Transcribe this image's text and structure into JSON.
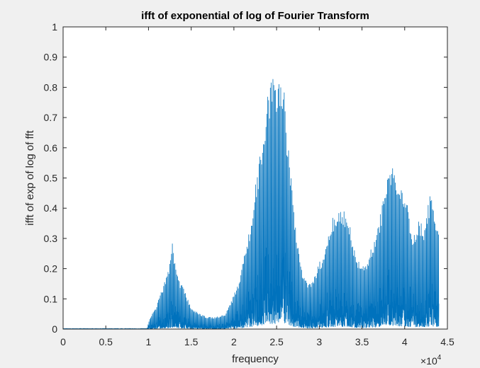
{
  "chart_data": {
    "type": "line",
    "title": "ifft of exponential of log of Fourier Transform",
    "xlabel": "frequency",
    "ylabel": "ifft of exp of log of fft",
    "x_multiplier": "×10",
    "x_multiplier_exponent": "4",
    "xlim": [
      0,
      45000
    ],
    "ylim": [
      0,
      1
    ],
    "x_ticks": [
      {
        "value": 0,
        "label": "0"
      },
      {
        "value": 5000,
        "label": "0.5"
      },
      {
        "value": 10000,
        "label": "1"
      },
      {
        "value": 15000,
        "label": "1.5"
      },
      {
        "value": 20000,
        "label": "2"
      },
      {
        "value": 25000,
        "label": "2.5"
      },
      {
        "value": 30000,
        "label": "3"
      },
      {
        "value": 35000,
        "label": "3.5"
      },
      {
        "value": 40000,
        "label": "4"
      },
      {
        "value": 45000,
        "label": "4.5"
      }
    ],
    "y_ticks": [
      {
        "value": 0,
        "label": "0"
      },
      {
        "value": 0.1,
        "label": "0.1"
      },
      {
        "value": 0.2,
        "label": "0.2"
      },
      {
        "value": 0.3,
        "label": "0.3"
      },
      {
        "value": 0.4,
        "label": "0.4"
      },
      {
        "value": 0.5,
        "label": "0.5"
      },
      {
        "value": 0.6,
        "label": "0.6"
      },
      {
        "value": 0.7,
        "label": "0.7"
      },
      {
        "value": 0.8,
        "label": "0.8"
      },
      {
        "value": 0.9,
        "label": "0.9"
      },
      {
        "value": 1,
        "label": "1"
      }
    ],
    "grid": false,
    "line_color": "#0072BD",
    "series": [
      {
        "x": [
          0,
          9800,
          10200,
          10800,
          11200,
          11800,
          12200,
          12600,
          12800,
          13000,
          13200,
          13600,
          14200,
          15000,
          16000,
          17000,
          18000,
          19000,
          19800,
          20200,
          20800,
          21400,
          22000,
          22600,
          23000,
          23400,
          23800,
          24200,
          24600,
          24800,
          25000,
          25200,
          25400,
          25600,
          25800,
          26000,
          26400,
          26800,
          27200,
          27600,
          28000,
          28600,
          29400,
          30000,
          30600,
          31200,
          31600,
          32000,
          32400,
          32800,
          33200,
          33600,
          34000,
          34400,
          34800,
          35400,
          36000,
          36600,
          37000,
          37400,
          37800,
          38200,
          38600,
          38800,
          39000,
          39400,
          39800,
          40200,
          40600,
          41000,
          41600,
          42200,
          42600,
          43000,
          43400,
          43800,
          44000
        ],
        "y": [
          0,
          0,
          0.04,
          0.07,
          0.1,
          0.15,
          0.18,
          0.24,
          0.29,
          0.24,
          0.22,
          0.16,
          0.13,
          0.07,
          0.05,
          0.04,
          0.04,
          0.05,
          0.1,
          0.13,
          0.18,
          0.28,
          0.36,
          0.5,
          0.56,
          0.67,
          0.74,
          0.82,
          0.89,
          0.84,
          0.8,
          0.94,
          0.86,
          0.84,
          0.82,
          0.74,
          0.6,
          0.47,
          0.35,
          0.28,
          0.2,
          0.15,
          0.17,
          0.22,
          0.26,
          0.34,
          0.37,
          0.38,
          0.4,
          0.4,
          0.38,
          0.34,
          0.28,
          0.24,
          0.22,
          0.22,
          0.26,
          0.3,
          0.36,
          0.42,
          0.5,
          0.53,
          0.55,
          0.57,
          0.5,
          0.48,
          0.47,
          0.44,
          0.36,
          0.3,
          0.36,
          0.34,
          0.39,
          0.45,
          0.41,
          0.35,
          0.33
        ]
      }
    ]
  }
}
